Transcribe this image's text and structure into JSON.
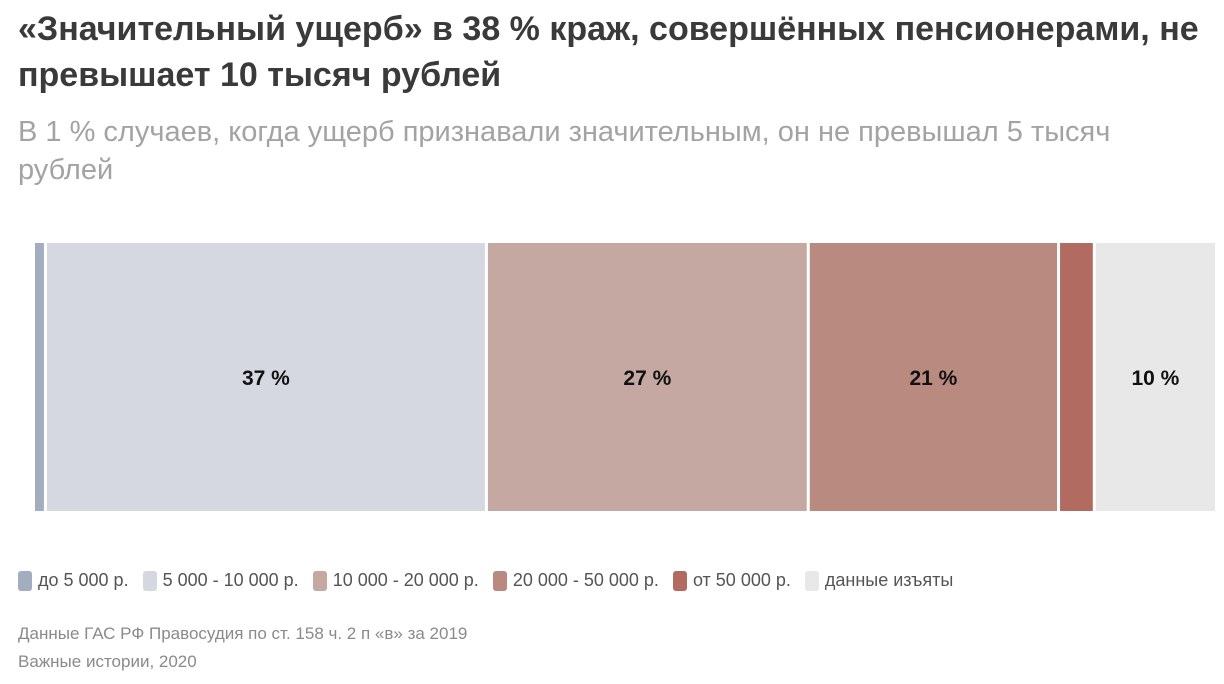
{
  "header": {
    "title": "«Значительный ущерб» в 38 % краж, совершённых пенсионерами, не превышает 10 тысяч рублей",
    "subtitle": "В 1 % случаев, когда ущерб признавали значительным, он не превышал 5 тысяч рублей"
  },
  "chart_data": {
    "type": "bar",
    "orientation": "horizontal-stacked-100",
    "categories": [
      "до 5 000 р.",
      "5 000 - 10 000 р.",
      "10 000 - 20 000 р.",
      "20 000 - 50 000 р.",
      "от 50 000 р.",
      "данные изъяты"
    ],
    "values": [
      1,
      37,
      27,
      21,
      3,
      10
    ],
    "labels": [
      "",
      "37 %",
      "27 %",
      "21 %",
      "",
      "10 %"
    ],
    "colors": [
      "#a2adc0",
      "#d5d8e0",
      "#c4a8a1",
      "#b98a80",
      "#b26b61",
      "#e8e8e8"
    ],
    "unit": "%",
    "legend": "bottom-left"
  },
  "footer": {
    "source_line1": "Данные ГАС РФ Правосудия по ст. 158 ч. 2 п «в» за 2019",
    "source_line2": "Важные истории, 2020"
  }
}
